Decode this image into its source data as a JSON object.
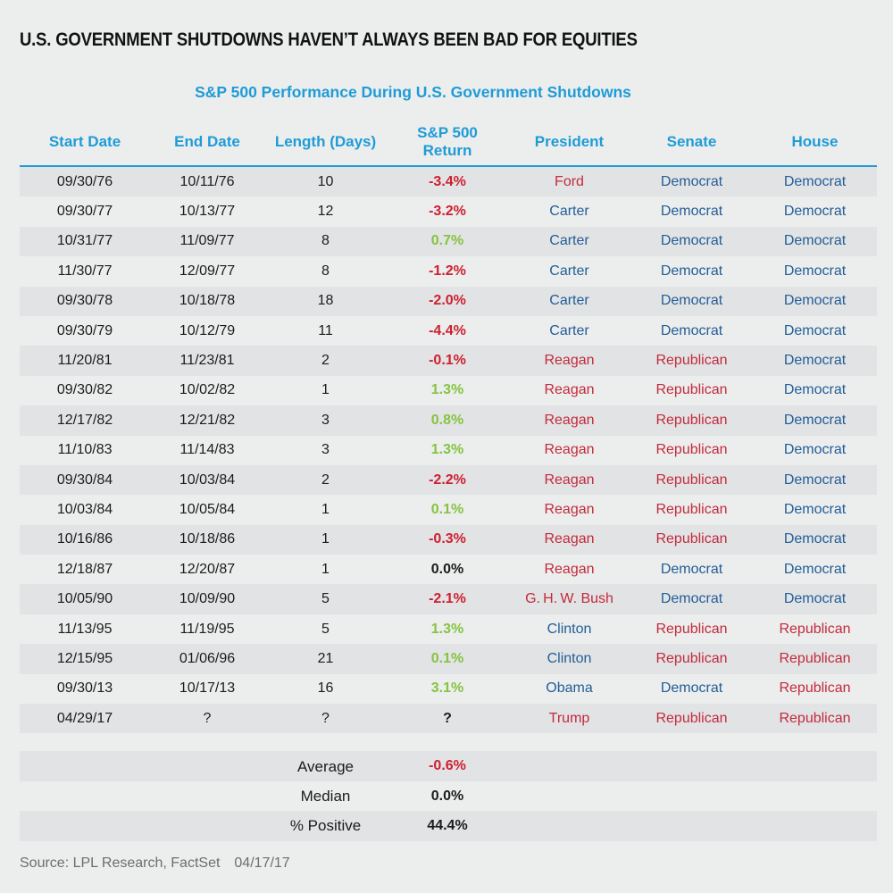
{
  "title": "U.S. GOVERNMENT SHUTDOWNS HAVEN’T ALWAYS BEEN BAD FOR EQUITIES",
  "subtitle": "S&P 500 Performance During U.S. Government Shutdowns",
  "source": {
    "label": "Source: LPL Research, FactSet",
    "date": "04/17/17"
  },
  "colors": {
    "accent_blue": "#1e9cd7",
    "democrat_blue": "#235e97",
    "republican_red": "#c22b3c",
    "negative_red": "#ce2030",
    "positive_green": "#85c441",
    "text_black": "#1c1c1c",
    "row_stripe": "#e2e3e5",
    "background": "#eceded",
    "source_gray": "#6d6e70"
  },
  "chart_data": {
    "type": "table",
    "title": "S&P 500 Performance During U.S. Government Shutdowns",
    "columns": [
      "Start Date",
      "End Date",
      "Length (Days)",
      "S&P 500\nReturn",
      "President",
      "Senate",
      "House"
    ],
    "rows": [
      {
        "start": "09/30/76",
        "end": "10/11/76",
        "length": "10",
        "ret": "-3.4%",
        "sign": "neg",
        "president": "Ford",
        "president_party": "R",
        "senate": "Democrat",
        "house": "Democrat"
      },
      {
        "start": "09/30/77",
        "end": "10/13/77",
        "length": "12",
        "ret": "-3.2%",
        "sign": "neg",
        "president": "Carter",
        "president_party": "D",
        "senate": "Democrat",
        "house": "Democrat"
      },
      {
        "start": "10/31/77",
        "end": "11/09/77",
        "length": "8",
        "ret": "0.7%",
        "sign": "pos",
        "president": "Carter",
        "president_party": "D",
        "senate": "Democrat",
        "house": "Democrat"
      },
      {
        "start": "11/30/77",
        "end": "12/09/77",
        "length": "8",
        "ret": "-1.2%",
        "sign": "neg",
        "president": "Carter",
        "president_party": "D",
        "senate": "Democrat",
        "house": "Democrat"
      },
      {
        "start": "09/30/78",
        "end": "10/18/78",
        "length": "18",
        "ret": "-2.0%",
        "sign": "neg",
        "president": "Carter",
        "president_party": "D",
        "senate": "Democrat",
        "house": "Democrat"
      },
      {
        "start": "09/30/79",
        "end": "10/12/79",
        "length": "11",
        "ret": "-4.4%",
        "sign": "neg",
        "president": "Carter",
        "president_party": "D",
        "senate": "Democrat",
        "house": "Democrat"
      },
      {
        "start": "11/20/81",
        "end": "11/23/81",
        "length": "2",
        "ret": "-0.1%",
        "sign": "neg",
        "president": "Reagan",
        "president_party": "R",
        "senate": "Republican",
        "house": "Democrat"
      },
      {
        "start": "09/30/82",
        "end": "10/02/82",
        "length": "1",
        "ret": "1.3%",
        "sign": "pos",
        "president": "Reagan",
        "president_party": "R",
        "senate": "Republican",
        "house": "Democrat"
      },
      {
        "start": "12/17/82",
        "end": "12/21/82",
        "length": "3",
        "ret": "0.8%",
        "sign": "pos",
        "president": "Reagan",
        "president_party": "R",
        "senate": "Republican",
        "house": "Democrat"
      },
      {
        "start": "11/10/83",
        "end": "11/14/83",
        "length": "3",
        "ret": "1.3%",
        "sign": "pos",
        "president": "Reagan",
        "president_party": "R",
        "senate": "Republican",
        "house": "Democrat"
      },
      {
        "start": "09/30/84",
        "end": "10/03/84",
        "length": "2",
        "ret": "-2.2%",
        "sign": "neg",
        "president": "Reagan",
        "president_party": "R",
        "senate": "Republican",
        "house": "Democrat"
      },
      {
        "start": "10/03/84",
        "end": "10/05/84",
        "length": "1",
        "ret": "0.1%",
        "sign": "pos",
        "president": "Reagan",
        "president_party": "R",
        "senate": "Republican",
        "house": "Democrat"
      },
      {
        "start": "10/16/86",
        "end": "10/18/86",
        "length": "1",
        "ret": "-0.3%",
        "sign": "neg",
        "president": "Reagan",
        "president_party": "R",
        "senate": "Republican",
        "house": "Democrat"
      },
      {
        "start": "12/18/87",
        "end": "12/20/87",
        "length": "1",
        "ret": "0.0%",
        "sign": "zero",
        "president": "Reagan",
        "president_party": "R",
        "senate": "Democrat",
        "house": "Democrat"
      },
      {
        "start": "10/05/90",
        "end": "10/09/90",
        "length": "5",
        "ret": "-2.1%",
        "sign": "neg",
        "president": "G. H. W. Bush",
        "president_party": "R",
        "senate": "Democrat",
        "house": "Democrat"
      },
      {
        "start": "11/13/95",
        "end": "11/19/95",
        "length": "5",
        "ret": "1.3%",
        "sign": "pos",
        "president": "Clinton",
        "president_party": "D",
        "senate": "Republican",
        "house": "Republican"
      },
      {
        "start": "12/15/95",
        "end": "01/06/96",
        "length": "21",
        "ret": "0.1%",
        "sign": "pos",
        "president": "Clinton",
        "president_party": "D",
        "senate": "Republican",
        "house": "Republican"
      },
      {
        "start": "09/30/13",
        "end": "10/17/13",
        "length": "16",
        "ret": "3.1%",
        "sign": "pos",
        "president": "Obama",
        "president_party": "D",
        "senate": "Democrat",
        "house": "Republican"
      },
      {
        "start": "04/29/17",
        "end": "?",
        "length": "?",
        "ret": "?",
        "sign": "na",
        "president": "Trump",
        "president_party": "R",
        "senate": "Republican",
        "house": "Republican"
      }
    ],
    "summary": [
      {
        "label": "Average",
        "value": "-0.6%",
        "sign": "neg"
      },
      {
        "label": "Median",
        "value": "0.0%",
        "sign": "flat"
      },
      {
        "label": "% Positive",
        "value": "44.4%",
        "sign": "flat"
      }
    ]
  }
}
